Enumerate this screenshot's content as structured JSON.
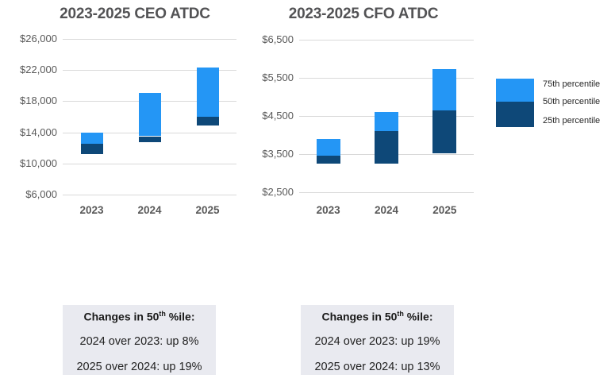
{
  "colors": {
    "background": "#ffffff",
    "p75_fill": "#2496F5",
    "p25_50_fill": "#0E4878",
    "gridline": "#D9D9D9",
    "axis_text": "#595959",
    "title_text": "#535355",
    "note_bg": "#E9EAF0"
  },
  "chart_data": [
    {
      "type": "bar",
      "subtype": "floating-range-stacked",
      "title": "2023-2025 CEO ATDC",
      "categories": [
        "2023",
        "2024",
        "2025"
      ],
      "series": [
        {
          "name": "25th percentile",
          "values": [
            11200,
            12700,
            14900
          ]
        },
        {
          "name": "50th percentile",
          "values": [
            12500,
            13500,
            16050
          ]
        },
        {
          "name": "75th percentile",
          "values": [
            13950,
            19100,
            22300
          ]
        }
      ],
      "ylim": [
        6000,
        26000
      ],
      "y_tick_values": [
        6000,
        10000,
        14000,
        18000,
        22000,
        26000
      ],
      "y_tick_labels": [
        "$6,000",
        "$10,000",
        "$14,000",
        "$18,000",
        "$22,000",
        "$26,000"
      ],
      "grid": true,
      "legend_position": "right-of-second-chart"
    },
    {
      "type": "bar",
      "subtype": "floating-range-stacked",
      "title": "2023-2025 CFO ATDC",
      "categories": [
        "2023",
        "2024",
        "2025"
      ],
      "series": [
        {
          "name": "25th percentile",
          "values": [
            3240,
            3240,
            3520
          ]
        },
        {
          "name": "50th percentile",
          "values": [
            3460,
            4110,
            4650
          ]
        },
        {
          "name": "75th percentile",
          "values": [
            3900,
            4600,
            5720
          ]
        }
      ],
      "ylim": [
        2500,
        6500
      ],
      "y_tick_values": [
        2500,
        3500,
        4500,
        5500,
        6500
      ],
      "y_tick_labels": [
        "$2,500",
        "$3,500",
        "$4,500",
        "$5,500",
        "$6,500"
      ],
      "grid": true,
      "legend_position": "right"
    }
  ],
  "legend": {
    "items": [
      {
        "label": "75th percentile",
        "swatch": "#2496F5"
      },
      {
        "label": "50th percentile",
        "swatch": "boundary"
      },
      {
        "label": "25th percentile",
        "swatch": "#0E4878"
      }
    ]
  },
  "notes": [
    {
      "heading_prefix": "Changes in 50",
      "heading_sup": "th",
      "heading_suffix": " %ile:",
      "lines": [
        "2024 over 2023: up 8%",
        "2025 over 2024: up 19%"
      ]
    },
    {
      "heading_prefix": "Changes in 50",
      "heading_sup": "th",
      "heading_suffix": " %ile:",
      "lines": [
        "2024 over 2023: up 19%",
        "2025 over 2024: up 13%"
      ]
    }
  ]
}
